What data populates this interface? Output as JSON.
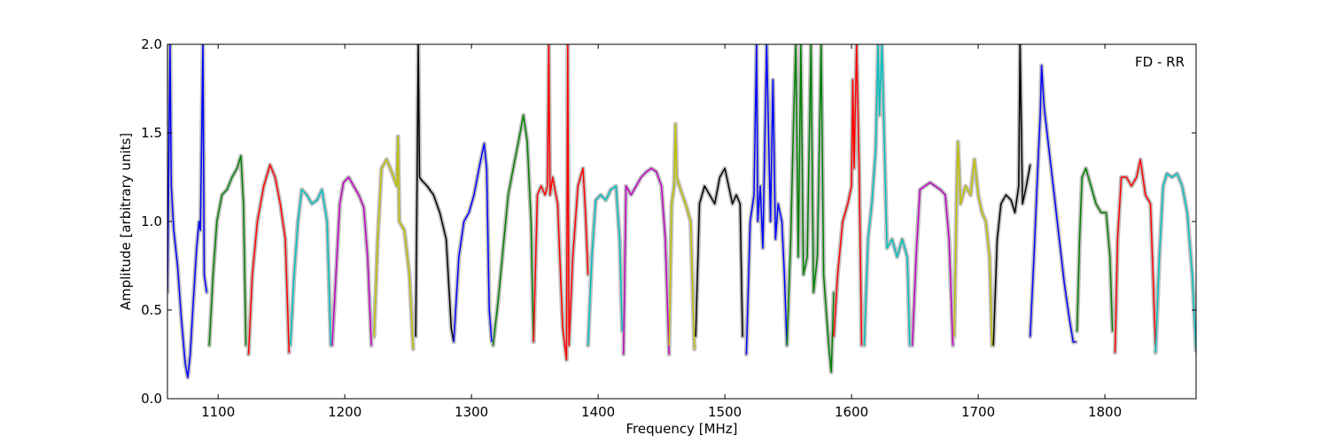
{
  "chart_data": {
    "type": "line",
    "title": "",
    "xlabel": "Frequency [MHz]",
    "ylabel": "Amplitude [arbitrary units]",
    "xlim": [
      1060,
      1872
    ],
    "ylim": [
      0.0,
      2.0
    ],
    "xticks": [
      1100,
      1200,
      1300,
      1400,
      1500,
      1600,
      1700,
      1800
    ],
    "xtick_labels": [
      "1100",
      "1200",
      "1300",
      "1400",
      "1500",
      "1600",
      "1700",
      "1800"
    ],
    "yticks": [
      0.0,
      0.5,
      1.0,
      1.5,
      2.0
    ],
    "ytick_labels": [
      "0.0",
      "0.5",
      "1.0",
      "1.5",
      "2.0"
    ],
    "annotation": "FD - RR",
    "annotation_position": "top-right",
    "grid": false,
    "raw_color": "#bfbfbf",
    "series": [
      {
        "color": "#0000ff",
        "x": [
          1060,
          1062,
          1063,
          1065,
          1068,
          1071,
          1074,
          1076,
          1078,
          1080,
          1083,
          1085,
          1086,
          1088,
          1089,
          1091
        ],
        "y": [
          0.6,
          2.0,
          1.2,
          0.95,
          0.75,
          0.45,
          0.2,
          0.12,
          0.25,
          0.5,
          0.85,
          1.0,
          0.95,
          2.0,
          0.7,
          0.6
        ]
      },
      {
        "color": "#008000",
        "x": [
          1093,
          1096,
          1099,
          1103,
          1107,
          1111,
          1115,
          1118,
          1120,
          1122
        ],
        "y": [
          0.3,
          0.7,
          1.0,
          1.15,
          1.18,
          1.25,
          1.3,
          1.37,
          1.1,
          0.3
        ]
      },
      {
        "color": "#ff0000",
        "x": [
          1124,
          1127,
          1131,
          1136,
          1141,
          1145,
          1149,
          1153,
          1156
        ],
        "y": [
          0.25,
          0.7,
          1.0,
          1.2,
          1.32,
          1.25,
          1.1,
          0.9,
          0.26
        ]
      },
      {
        "color": "#00bfbf",
        "x": [
          1157,
          1160,
          1163,
          1166,
          1170,
          1174,
          1178,
          1182,
          1186,
          1189
        ],
        "y": [
          0.3,
          0.7,
          1.0,
          1.18,
          1.15,
          1.1,
          1.12,
          1.18,
          1.0,
          0.3
        ]
      },
      {
        "color": "#bf00bf",
        "x": [
          1190,
          1193,
          1196,
          1199,
          1203,
          1207,
          1211,
          1215,
          1218,
          1221
        ],
        "y": [
          0.3,
          0.7,
          1.1,
          1.22,
          1.25,
          1.2,
          1.15,
          1.08,
          0.8,
          0.3
        ]
      },
      {
        "color": "#bfbf00",
        "x": [
          1223,
          1226,
          1229,
          1233,
          1237,
          1241,
          1242,
          1243,
          1247,
          1251,
          1254
        ],
        "y": [
          0.35,
          0.9,
          1.3,
          1.35,
          1.28,
          1.2,
          1.48,
          1.0,
          0.95,
          0.7,
          0.28
        ]
      },
      {
        "color": "#000000",
        "x": [
          1256,
          1257,
          1258,
          1259,
          1261,
          1265,
          1270,
          1275,
          1280,
          1284,
          1286
        ],
        "y": [
          0.35,
          1.2,
          2.0,
          1.25,
          1.23,
          1.2,
          1.15,
          1.05,
          0.9,
          0.4,
          0.32
        ]
      },
      {
        "color": "#0000ff",
        "x": [
          1286,
          1290,
          1294,
          1298,
          1302,
          1306,
          1310,
          1312,
          1314,
          1316
        ],
        "y": [
          0.32,
          0.8,
          1.0,
          1.05,
          1.15,
          1.3,
          1.44,
          1.3,
          0.5,
          0.32
        ]
      },
      {
        "color": "#008000",
        "x": [
          1317,
          1321,
          1325,
          1329,
          1333,
          1337,
          1341,
          1344,
          1347,
          1349
        ],
        "y": [
          0.3,
          0.55,
          0.85,
          1.15,
          1.3,
          1.45,
          1.6,
          1.45,
          1.0,
          0.32
        ]
      },
      {
        "color": "#ff0000",
        "x": [
          1349,
          1352,
          1355,
          1358,
          1360,
          1361,
          1362,
          1364,
          1368,
          1372,
          1375,
          1376,
          1377,
          1380,
          1384,
          1388,
          1390,
          1392
        ],
        "y": [
          0.32,
          1.15,
          1.2,
          1.15,
          1.2,
          2.0,
          1.15,
          1.25,
          1.1,
          0.4,
          0.22,
          2.0,
          0.3,
          0.8,
          1.2,
          1.3,
          1.05,
          0.7
        ]
      },
      {
        "color": "#00bfbf",
        "x": [
          1392,
          1395,
          1398,
          1402,
          1406,
          1410,
          1414,
          1417,
          1419
        ],
        "y": [
          0.3,
          0.8,
          1.12,
          1.15,
          1.12,
          1.18,
          1.2,
          0.9,
          0.38
        ]
      },
      {
        "color": "#bf00bf",
        "x": [
          1420,
          1422,
          1426,
          1430,
          1434,
          1438,
          1442,
          1446,
          1450,
          1453,
          1456
        ],
        "y": [
          0.25,
          1.2,
          1.15,
          1.2,
          1.25,
          1.28,
          1.3,
          1.28,
          1.2,
          0.9,
          0.25
        ]
      },
      {
        "color": "#bfbf00",
        "x": [
          1456,
          1458,
          1460,
          1461,
          1462,
          1465,
          1469,
          1473,
          1476
        ],
        "y": [
          0.3,
          1.1,
          1.2,
          1.55,
          1.25,
          1.18,
          1.1,
          1.0,
          0.28
        ]
      },
      {
        "color": "#000000",
        "x": [
          1477,
          1480,
          1484,
          1488,
          1492,
          1496,
          1500,
          1503,
          1506,
          1509,
          1512,
          1514
        ],
        "y": [
          0.35,
          1.1,
          1.2,
          1.15,
          1.1,
          1.25,
          1.3,
          1.2,
          1.1,
          1.15,
          1.1,
          0.35
        ]
      },
      {
        "color": "#0000ff",
        "x": [
          1517,
          1520,
          1523,
          1525,
          1526,
          1528,
          1530,
          1533,
          1536,
          1538,
          1540,
          1542,
          1545,
          1547,
          1549
        ],
        "y": [
          0.25,
          1.0,
          1.15,
          2.0,
          1.0,
          1.2,
          0.85,
          2.0,
          1.0,
          1.8,
          0.9,
          1.1,
          1.0,
          0.7,
          0.3
        ]
      },
      {
        "color": "#008000",
        "x": [
          1549,
          1552,
          1554,
          1556,
          1558,
          1560,
          1562,
          1565,
          1568,
          1570,
          1573,
          1576,
          1578,
          1580,
          1582,
          1584,
          1586
        ],
        "y": [
          0.3,
          0.9,
          1.5,
          2.0,
          0.8,
          2.0,
          0.7,
          0.8,
          2.0,
          0.6,
          0.8,
          2.0,
          0.7,
          0.5,
          0.3,
          0.15,
          0.6
        ]
      },
      {
        "color": "#ff0000",
        "x": [
          1586,
          1589,
          1593,
          1597,
          1600,
          1601,
          1602,
          1604,
          1606,
          1608
        ],
        "y": [
          0.35,
          0.7,
          1.0,
          1.1,
          1.2,
          1.8,
          1.3,
          2.0,
          1.3,
          0.3
        ]
      },
      {
        "color": "#00bfbf",
        "x": [
          1610,
          1613,
          1616,
          1619,
          1621,
          1622,
          1624,
          1628,
          1632,
          1636,
          1640,
          1644,
          1646
        ],
        "y": [
          0.3,
          0.9,
          1.1,
          1.4,
          2.0,
          1.6,
          2.0,
          0.85,
          0.9,
          0.8,
          0.9,
          0.8,
          0.3
        ]
      },
      {
        "color": "#bf00bf",
        "x": [
          1648,
          1651,
          1654,
          1658,
          1662,
          1666,
          1670,
          1674,
          1677,
          1680
        ],
        "y": [
          0.3,
          0.8,
          1.18,
          1.2,
          1.22,
          1.2,
          1.18,
          1.15,
          0.9,
          0.3
        ]
      },
      {
        "color": "#bfbf00",
        "x": [
          1681,
          1683,
          1684,
          1686,
          1690,
          1694,
          1697,
          1700,
          1703,
          1706,
          1709,
          1711
        ],
        "y": [
          0.35,
          1.15,
          1.45,
          1.1,
          1.2,
          1.15,
          1.35,
          1.15,
          1.05,
          1.0,
          0.8,
          0.3
        ]
      },
      {
        "color": "#000000",
        "x": [
          1712,
          1715,
          1718,
          1722,
          1726,
          1729,
          1731,
          1732,
          1733,
          1735,
          1738,
          1741
        ],
        "y": [
          0.3,
          0.9,
          1.1,
          1.15,
          1.12,
          1.05,
          1.15,
          1.2,
          2.0,
          1.1,
          1.2,
          1.32
        ]
      },
      {
        "color": "#0000ff",
        "x": [
          1741,
          1744,
          1747,
          1749,
          1750,
          1752,
          1756,
          1760,
          1764,
          1768,
          1772,
          1775,
          1777
        ],
        "y": [
          0.35,
          0.8,
          1.3,
          1.6,
          1.88,
          1.65,
          1.4,
          1.15,
          0.9,
          0.65,
          0.45,
          0.32,
          0.32
        ]
      },
      {
        "color": "#008000",
        "x": [
          1778,
          1780,
          1782,
          1785,
          1789,
          1793,
          1797,
          1801,
          1804,
          1806
        ],
        "y": [
          0.38,
          0.9,
          1.25,
          1.3,
          1.2,
          1.1,
          1.05,
          1.05,
          0.8,
          0.38
        ]
      },
      {
        "color": "#ff0000",
        "x": [
          1808,
          1810,
          1813,
          1817,
          1821,
          1825,
          1828,
          1832,
          1836,
          1840
        ],
        "y": [
          0.26,
          0.9,
          1.25,
          1.25,
          1.2,
          1.25,
          1.35,
          1.15,
          1.1,
          0.3
        ]
      },
      {
        "color": "#00bfbf",
        "x": [
          1840,
          1843,
          1846,
          1849,
          1853,
          1857,
          1861,
          1865,
          1869,
          1872
        ],
        "y": [
          0.26,
          0.8,
          1.2,
          1.27,
          1.25,
          1.27,
          1.2,
          1.05,
          0.7,
          0.27
        ]
      }
    ]
  }
}
